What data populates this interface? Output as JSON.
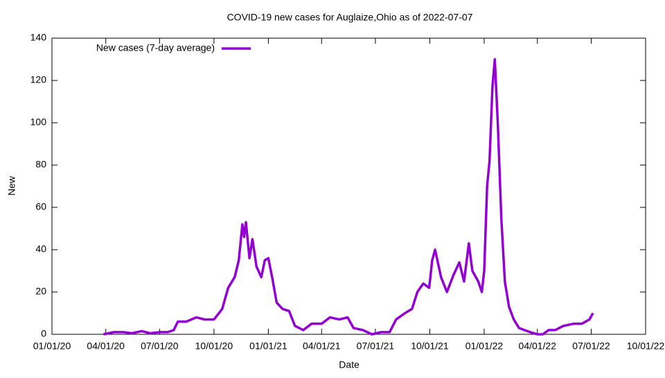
{
  "chart_data": {
    "type": "line",
    "title": "COVID-19 new cases for Auglaize,Ohio as of 2022-07-07",
    "xlabel": "Date",
    "ylabel": "New",
    "x": [
      "2020-03-28",
      "2020-04-15",
      "2020-05-01",
      "2020-05-15",
      "2020-06-01",
      "2020-06-15",
      "2020-07-01",
      "2020-07-15",
      "2020-07-25",
      "2020-08-01",
      "2020-08-15",
      "2020-09-01",
      "2020-09-15",
      "2020-10-01",
      "2020-10-15",
      "2020-10-25",
      "2020-11-05",
      "2020-11-12",
      "2020-11-18",
      "2020-11-21",
      "2020-11-24",
      "2020-11-30",
      "2020-12-05",
      "2020-12-12",
      "2020-12-20",
      "2020-12-26",
      "2021-01-01",
      "2021-01-08",
      "2021-01-15",
      "2021-01-25",
      "2021-02-05",
      "2021-02-15",
      "2021-03-01",
      "2021-03-15",
      "2021-04-01",
      "2021-04-15",
      "2021-05-01",
      "2021-05-15",
      "2021-05-25",
      "2021-06-10",
      "2021-06-25",
      "2021-07-10",
      "2021-07-25",
      "2021-08-05",
      "2021-08-20",
      "2021-09-01",
      "2021-09-10",
      "2021-09-20",
      "2021-09-30",
      "2021-10-05",
      "2021-10-10",
      "2021-10-20",
      "2021-10-30",
      "2021-11-10",
      "2021-11-20",
      "2021-11-28",
      "2021-12-06",
      "2021-12-12",
      "2021-12-22",
      "2021-12-28",
      "2022-01-01",
      "2022-01-06",
      "2022-01-10",
      "2022-01-15",
      "2022-01-19",
      "2022-01-24",
      "2022-01-30",
      "2022-02-05",
      "2022-02-12",
      "2022-02-20",
      "2022-03-01",
      "2022-03-10",
      "2022-03-20",
      "2022-04-01",
      "2022-04-10",
      "2022-04-20",
      "2022-05-01",
      "2022-05-15",
      "2022-06-01",
      "2022-06-15",
      "2022-06-28",
      "2022-07-04"
    ],
    "series": [
      {
        "name": "New cases (7-day average)",
        "color": "#9400d3",
        "values": [
          0,
          1,
          1,
          0.5,
          1.5,
          0.5,
          1,
          1,
          2,
          6,
          6,
          8,
          7,
          7,
          12,
          22,
          27,
          35,
          52,
          46,
          53,
          36,
          45,
          32,
          27,
          35,
          36,
          26,
          15,
          12,
          11,
          4,
          2,
          5,
          5,
          8,
          7,
          8,
          3,
          2,
          0,
          1,
          1,
          7,
          10,
          12,
          20,
          24,
          22,
          35,
          40,
          27,
          20,
          28,
          34,
          25,
          43,
          30,
          25,
          20,
          30,
          70,
          82,
          117,
          130,
          100,
          55,
          25,
          13,
          7,
          3,
          2,
          1,
          0,
          0,
          2,
          2,
          4,
          5,
          5,
          7,
          10
        ]
      }
    ],
    "xlim": [
      "2020-01-01",
      "2022-10-01"
    ],
    "xticks": [
      {
        "value": "2020-01-01",
        "label": "01/01/20"
      },
      {
        "value": "2020-04-01",
        "label": "04/01/20"
      },
      {
        "value": "2020-07-01",
        "label": "07/01/20"
      },
      {
        "value": "2020-10-01",
        "label": "10/01/20"
      },
      {
        "value": "2021-01-01",
        "label": "01/01/21"
      },
      {
        "value": "2021-04-01",
        "label": "04/01/21"
      },
      {
        "value": "2021-07-01",
        "label": "07/01/21"
      },
      {
        "value": "2021-10-01",
        "label": "10/01/21"
      },
      {
        "value": "2022-01-01",
        "label": "01/01/22"
      },
      {
        "value": "2022-04-01",
        "label": "04/01/22"
      },
      {
        "value": "2022-07-01",
        "label": "07/01/22"
      },
      {
        "value": "2022-10-01",
        "label": "10/01/22"
      }
    ],
    "ylim": [
      0,
      140
    ],
    "yticks": [
      0,
      20,
      40,
      60,
      80,
      100,
      120,
      140
    ],
    "legend": "top-left"
  }
}
